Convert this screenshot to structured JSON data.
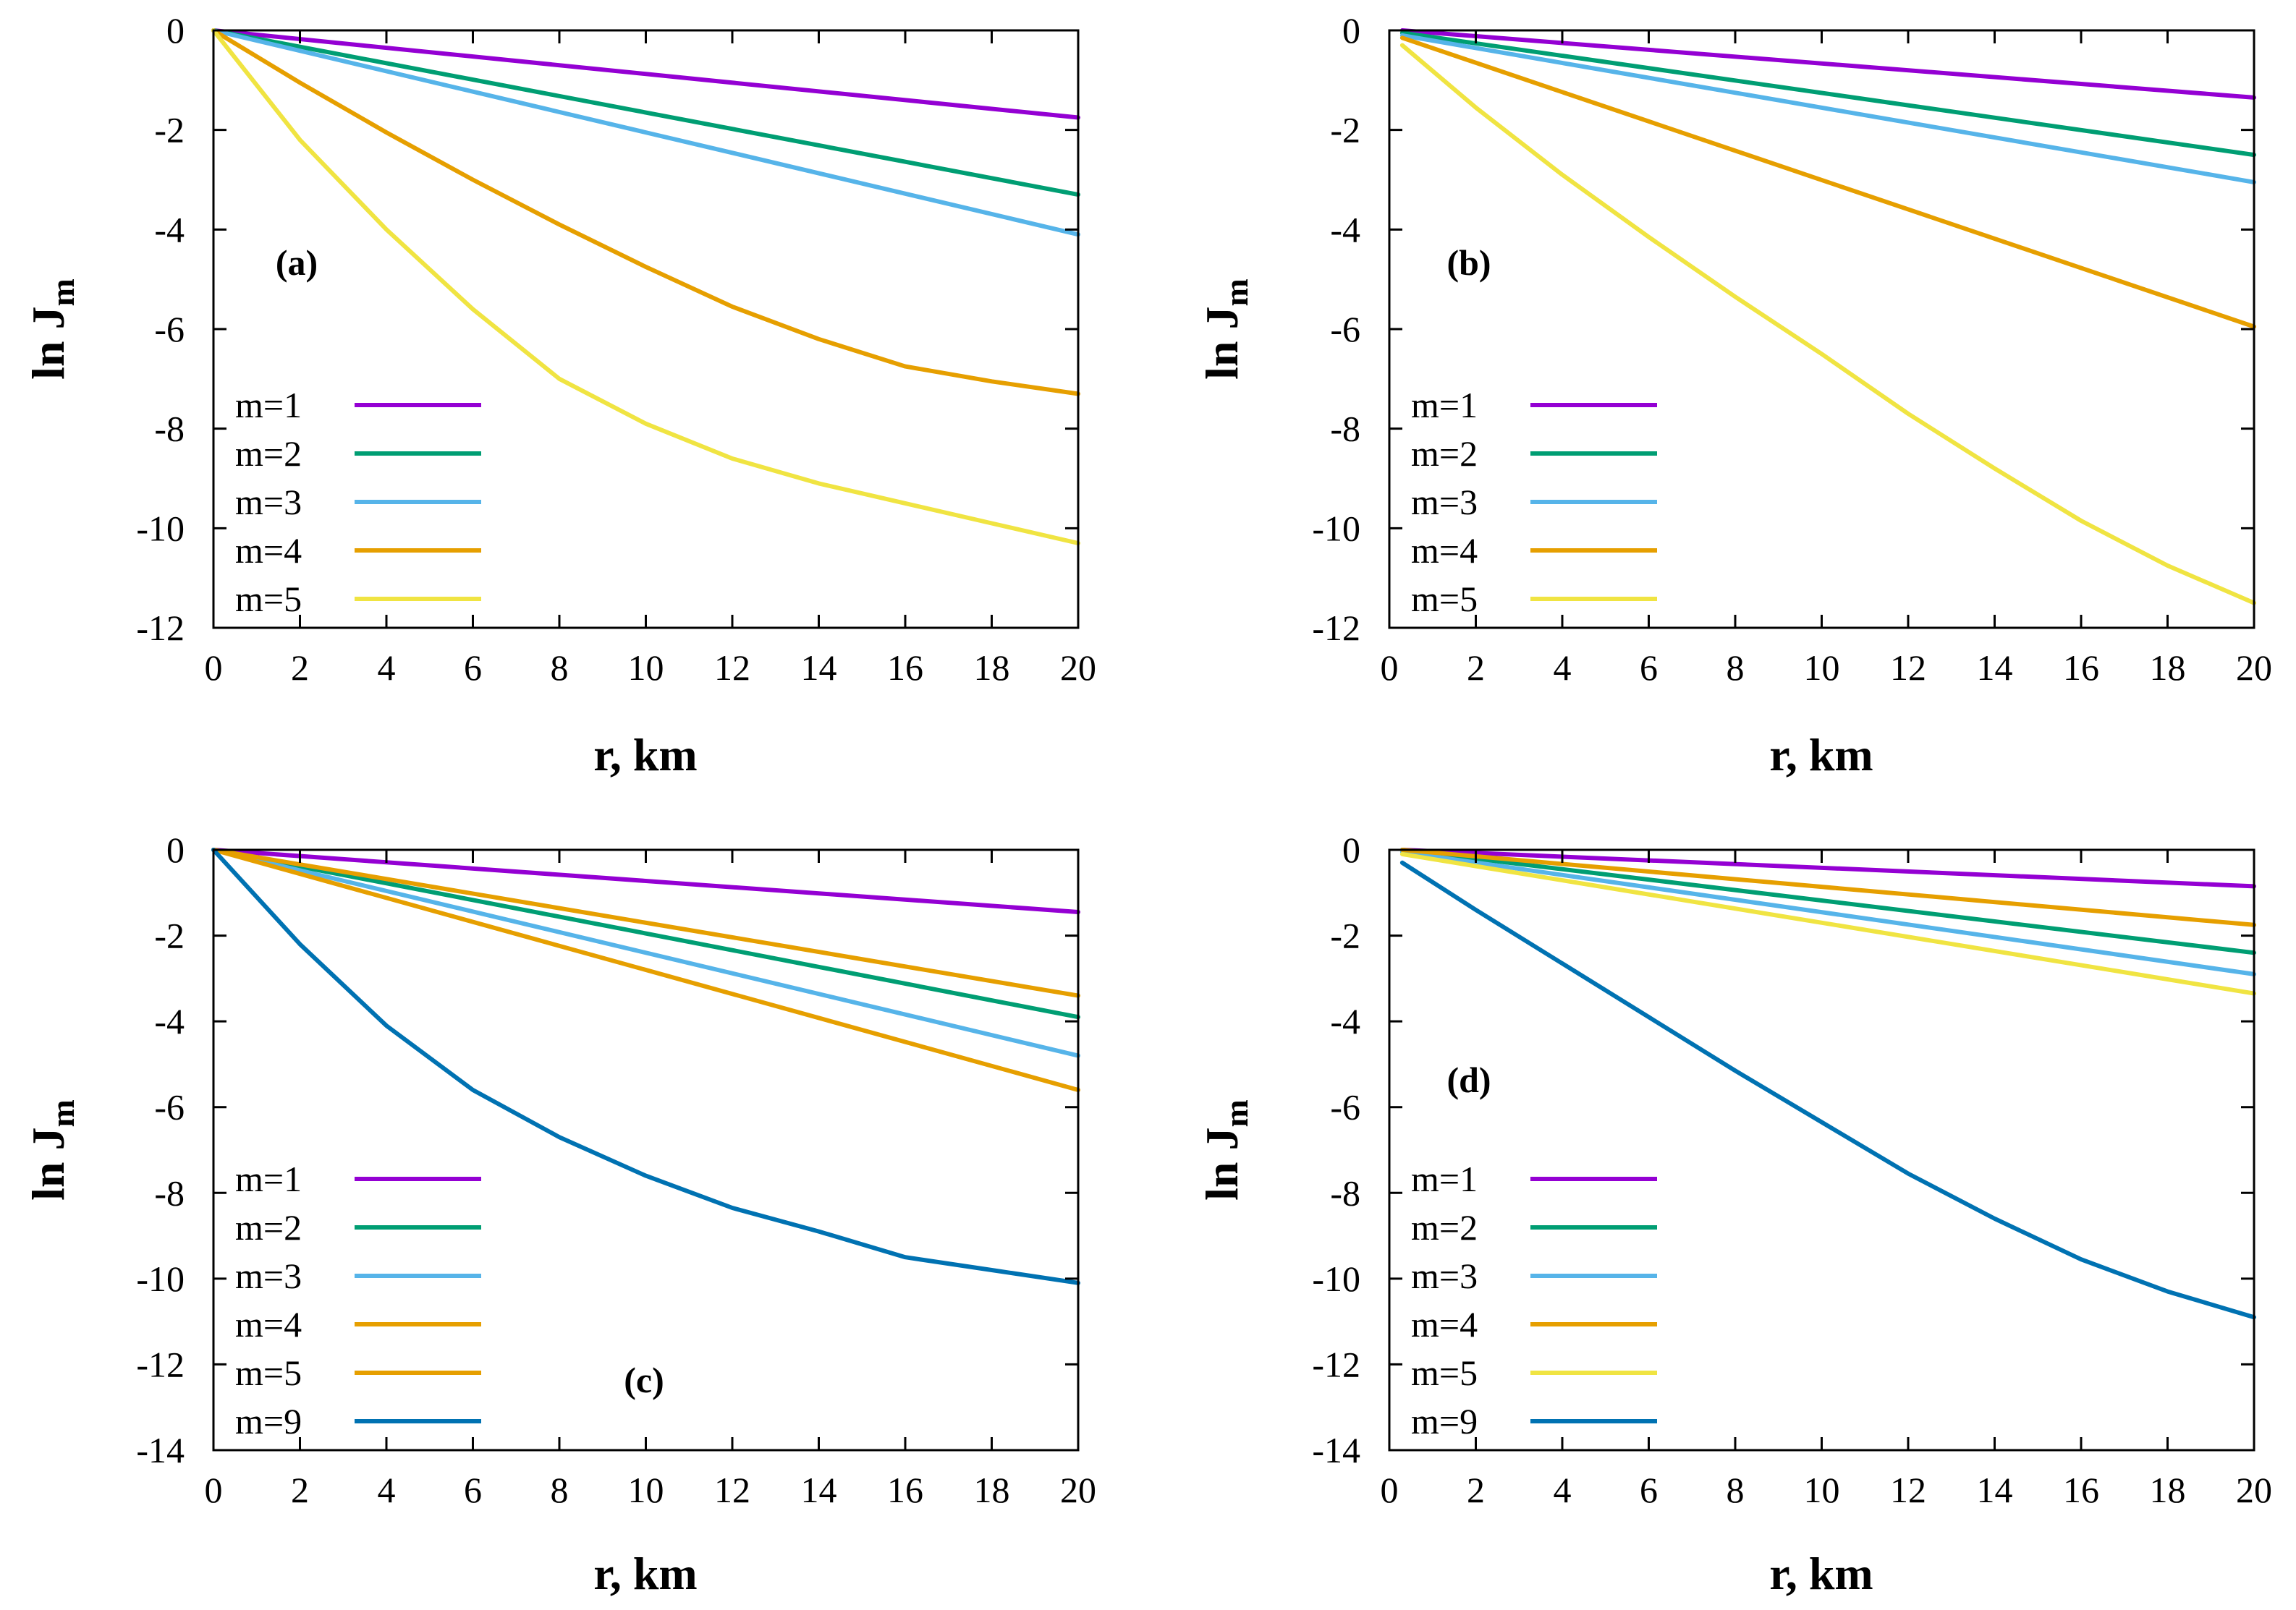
{
  "colors": {
    "m1": "#9400d3",
    "m2": "#009e73",
    "m3": "#56b4e9",
    "m4": "#e69f00",
    "m5_yellow": "#f0e442",
    "m9": "#0072b2"
  },
  "chart_data": [
    {
      "type": "line",
      "panel_label": "(a)",
      "xlabel": "r, km",
      "ylabel_main": "ln J",
      "ylabel_sub": "m",
      "xlim": [
        0,
        20
      ],
      "ylim": [
        -12,
        0
      ],
      "xticks": [
        0,
        2,
        4,
        6,
        8,
        10,
        12,
        14,
        16,
        18,
        20
      ],
      "yticks": [
        0,
        -2,
        -4,
        -6,
        -8,
        -10,
        -12
      ],
      "legend_position": "bottom-left",
      "series": [
        {
          "name": "m=1",
          "color": "#9400d3",
          "x": [
            0,
            20
          ],
          "y": [
            0,
            -1.75
          ]
        },
        {
          "name": "m=2",
          "color": "#009e73",
          "x": [
            0,
            20
          ],
          "y": [
            0,
            -3.3
          ]
        },
        {
          "name": "m=3",
          "color": "#56b4e9",
          "x": [
            0,
            20
          ],
          "y": [
            0,
            -4.1
          ]
        },
        {
          "name": "m=4",
          "color": "#e69f00",
          "x": [
            0,
            2,
            4,
            6,
            8,
            10,
            12,
            14,
            16,
            18,
            20
          ],
          "y": [
            0,
            -1.05,
            -2.05,
            -3.0,
            -3.9,
            -4.75,
            -5.55,
            -6.2,
            -6.75,
            -7.05,
            -7.3
          ]
        },
        {
          "name": "m=5",
          "color": "#f0e442",
          "x": [
            0,
            2,
            4,
            6,
            8,
            10,
            12,
            14,
            16,
            18,
            20
          ],
          "y": [
            0,
            -2.2,
            -4.0,
            -5.6,
            -7.0,
            -7.9,
            -8.6,
            -9.1,
            -9.5,
            -9.9,
            -10.3
          ]
        }
      ]
    },
    {
      "type": "line",
      "panel_label": "(b)",
      "xlabel": "r, km",
      "ylabel_main": "ln J",
      "ylabel_sub": "m",
      "xlim": [
        0,
        20
      ],
      "ylim": [
        -12,
        0
      ],
      "xticks": [
        0,
        2,
        4,
        6,
        8,
        10,
        12,
        14,
        16,
        18,
        20
      ],
      "yticks": [
        0,
        -2,
        -4,
        -6,
        -8,
        -10,
        -12
      ],
      "legend_position": "bottom-left",
      "series": [
        {
          "name": "m=1",
          "color": "#9400d3",
          "x": [
            0.3,
            20
          ],
          "y": [
            0,
            -1.35
          ]
        },
        {
          "name": "m=2",
          "color": "#009e73",
          "x": [
            0.3,
            20
          ],
          "y": [
            -0.05,
            -2.5
          ]
        },
        {
          "name": "m=3",
          "color": "#56b4e9",
          "x": [
            0.3,
            20
          ],
          "y": [
            -0.1,
            -3.05
          ]
        },
        {
          "name": "m=4",
          "color": "#e69f00",
          "x": [
            0.3,
            20
          ],
          "y": [
            -0.15,
            -5.95
          ]
        },
        {
          "name": "m=5",
          "color": "#f0e442",
          "x": [
            0.3,
            2,
            4,
            6,
            8,
            10,
            12,
            14,
            16,
            18,
            20
          ],
          "y": [
            -0.3,
            -1.55,
            -2.9,
            -4.15,
            -5.35,
            -6.5,
            -7.7,
            -8.8,
            -9.85,
            -10.75,
            -11.5
          ]
        }
      ]
    },
    {
      "type": "line",
      "panel_label": "(c)",
      "xlabel": "r, km",
      "ylabel_main": "ln J",
      "ylabel_sub": "m",
      "xlim": [
        0,
        20
      ],
      "ylim": [
        -14,
        0
      ],
      "xticks": [
        0,
        2,
        4,
        6,
        8,
        10,
        12,
        14,
        16,
        18,
        20
      ],
      "yticks": [
        0,
        -2,
        -4,
        -6,
        -8,
        -10,
        -12,
        -14
      ],
      "legend_position": "bottom-left",
      "series": [
        {
          "name": "m=1",
          "color": "#9400d3",
          "x": [
            0,
            20
          ],
          "y": [
            0,
            -1.45
          ]
        },
        {
          "name": "m=2",
          "color": "#009e73",
          "x": [
            0,
            20
          ],
          "y": [
            0,
            -3.9
          ]
        },
        {
          "name": "m=3",
          "color": "#56b4e9",
          "x": [
            0,
            20
          ],
          "y": [
            0,
            -4.8
          ]
        },
        {
          "name": "m=4",
          "color": "#e69f00",
          "x": [
            0,
            20
          ],
          "y": [
            0,
            -3.4
          ]
        },
        {
          "name": "m=5",
          "color": "#e69f00",
          "x": [
            0,
            20
          ],
          "y": [
            0,
            -5.6
          ]
        },
        {
          "name": "m=9",
          "color": "#0072b2",
          "x": [
            0,
            2,
            4,
            6,
            8,
            10,
            12,
            14,
            16,
            18,
            20
          ],
          "y": [
            0,
            -2.2,
            -4.1,
            -5.6,
            -6.7,
            -7.6,
            -8.35,
            -8.9,
            -9.5,
            -9.8,
            -10.1
          ]
        }
      ]
    },
    {
      "type": "line",
      "panel_label": "(d)",
      "xlabel": "r, km",
      "ylabel_main": "ln J",
      "ylabel_sub": "m",
      "xlim": [
        0,
        20
      ],
      "ylim": [
        -14,
        0
      ],
      "xticks": [
        0,
        2,
        4,
        6,
        8,
        10,
        12,
        14,
        16,
        18,
        20
      ],
      "yticks": [
        0,
        -2,
        -4,
        -6,
        -8,
        -10,
        -12,
        -14
      ],
      "legend_position": "bottom-left",
      "series": [
        {
          "name": "m=1",
          "color": "#9400d3",
          "x": [
            0.3,
            20
          ],
          "y": [
            0,
            -0.85
          ]
        },
        {
          "name": "m=2",
          "color": "#009e73",
          "x": [
            0.3,
            20
          ],
          "y": [
            0,
            -2.4
          ]
        },
        {
          "name": "m=3",
          "color": "#56b4e9",
          "x": [
            0.3,
            20
          ],
          "y": [
            -0.05,
            -2.9
          ]
        },
        {
          "name": "m=4",
          "color": "#e69f00",
          "x": [
            0.3,
            20
          ],
          "y": [
            0,
            -1.75
          ]
        },
        {
          "name": "m=5",
          "color": "#f0e442",
          "x": [
            0.3,
            20
          ],
          "y": [
            -0.1,
            -3.35
          ]
        },
        {
          "name": "m=9",
          "color": "#0072b2",
          "x": [
            0.3,
            2,
            4,
            6,
            8,
            10,
            12,
            14,
            16,
            18,
            20
          ],
          "y": [
            -0.3,
            -1.4,
            -2.65,
            -3.9,
            -5.15,
            -6.35,
            -7.55,
            -8.6,
            -9.55,
            -10.3,
            -10.9
          ]
        }
      ]
    }
  ]
}
